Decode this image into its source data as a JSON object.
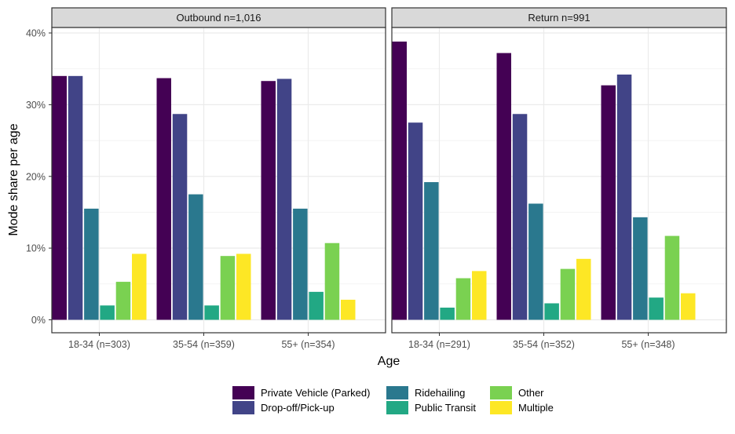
{
  "chart_data": {
    "type": "bar",
    "ylabel": "Mode share per age",
    "xlabel": "Age",
    "ylim": [
      0,
      0.42
    ],
    "yticks": [
      0,
      0.1,
      0.2,
      0.3,
      0.4
    ],
    "ytick_labels": [
      "0%",
      "10%",
      "20%",
      "30%",
      "40%"
    ],
    "legend_position": "bottom",
    "legend": [
      {
        "name": "Private Vehicle (Parked)",
        "color": "#440154"
      },
      {
        "name": "Drop-off/Pick-up",
        "color": "#414487"
      },
      {
        "name": "Ridehailing",
        "color": "#2A788E"
      },
      {
        "name": "Public Transit",
        "color": "#22A884"
      },
      {
        "name": "Other",
        "color": "#7AD151"
      },
      {
        "name": "Multiple",
        "color": "#FDE725"
      }
    ],
    "facets": [
      {
        "title": "Outbound n=1,016",
        "categories": [
          "18-34 (n=303)",
          "35-54 (n=359)",
          "55+ (n=354)"
        ],
        "series": [
          {
            "name": "Private Vehicle (Parked)",
            "values": [
              0.34,
              0.337,
              0.333
            ]
          },
          {
            "name": "Drop-off/Pick-up",
            "values": [
              0.34,
              0.287,
              0.336
            ]
          },
          {
            "name": "Ridehailing",
            "values": [
              0.155,
              0.175,
              0.155
            ]
          },
          {
            "name": "Public Transit",
            "values": [
              0.02,
              0.02,
              0.039
            ]
          },
          {
            "name": "Other",
            "values": [
              0.053,
              0.089,
              0.107
            ]
          },
          {
            "name": "Multiple",
            "values": [
              0.092,
              0.092,
              0.028
            ]
          }
        ]
      },
      {
        "title": "Return n=991",
        "categories": [
          "18-34 (n=291)",
          "35-54 (n=352)",
          "55+ (n=348)"
        ],
        "series": [
          {
            "name": "Private Vehicle (Parked)",
            "values": [
              0.388,
              0.372,
              0.327
            ]
          },
          {
            "name": "Drop-off/Pick-up",
            "values": [
              0.275,
              0.287,
              0.342
            ]
          },
          {
            "name": "Ridehailing",
            "values": [
              0.192,
              0.162,
              0.143
            ]
          },
          {
            "name": "Public Transit",
            "values": [
              0.017,
              0.023,
              0.031
            ]
          },
          {
            "name": "Other",
            "values": [
              0.058,
              0.071,
              0.117
            ]
          },
          {
            "name": "Multiple",
            "values": [
              0.068,
              0.085,
              0.037
            ]
          }
        ]
      }
    ]
  }
}
